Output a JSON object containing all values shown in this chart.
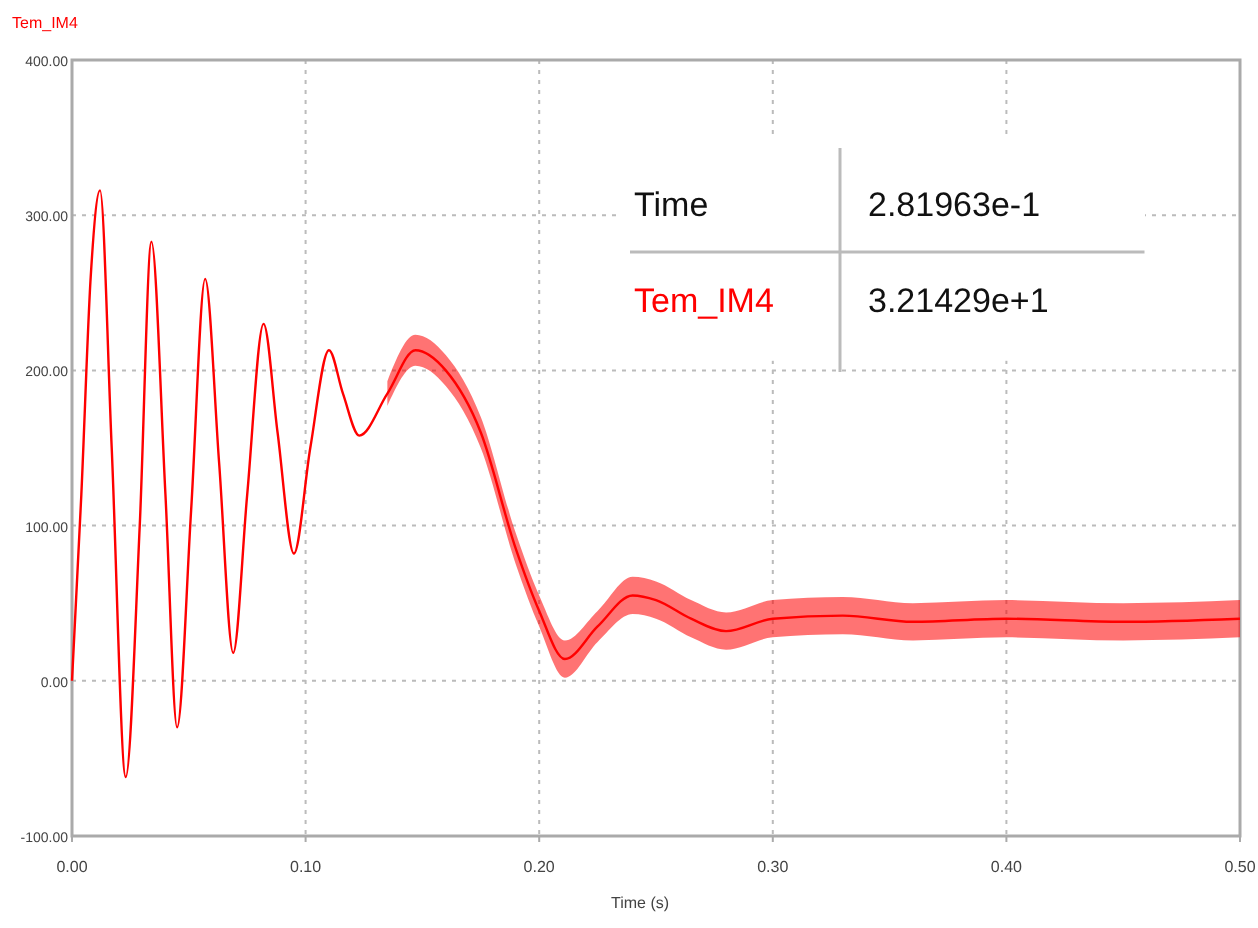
{
  "chart_data": {
    "type": "line",
    "xlabel": "Time (s)",
    "x": [
      0,
      0.004,
      0.008,
      0.012,
      0.017,
      0.023,
      0.029,
      0.034,
      0.04,
      0.045,
      0.051,
      0.057,
      0.063,
      0.069,
      0.075,
      0.082,
      0.088,
      0.095,
      0.102,
      0.11,
      0.116,
      0.123,
      0.135,
      0.147,
      0.16,
      0.175,
      0.19,
      0.2,
      0.211,
      0.225,
      0.24,
      0.25,
      0.265,
      0.28,
      0.3,
      0.33,
      0.36,
      0.4,
      0.45,
      0.5
    ],
    "series": [
      {
        "name": "Tem_IM4",
        "color": "#ff0000",
        "values": [
          0,
          120,
          260,
          316,
          150,
          -62,
          100,
          283,
          120,
          -30,
          110,
          259,
          140,
          18,
          120,
          230,
          160,
          82,
          150,
          213,
          185,
          158,
          185,
          213,
          200,
          160,
          85,
          45,
          14,
          35,
          55,
          52,
          40,
          32,
          40,
          42,
          38,
          40,
          38,
          40
        ],
        "lower": [
          null,
          null,
          null,
          null,
          null,
          null,
          null,
          null,
          null,
          null,
          null,
          null,
          null,
          null,
          null,
          null,
          null,
          null,
          null,
          null,
          null,
          null,
          177,
          203,
          190,
          150,
          75,
          35,
          2,
          25,
          43,
          40,
          28,
          20,
          28,
          30,
          26,
          28,
          26,
          28
        ],
        "upper": [
          null,
          null,
          null,
          null,
          null,
          null,
          null,
          null,
          null,
          null,
          null,
          null,
          null,
          null,
          null,
          null,
          null,
          null,
          null,
          null,
          null,
          null,
          193,
          223,
          210,
          170,
          95,
          55,
          26,
          45,
          67,
          64,
          52,
          44,
          52,
          54,
          50,
          52,
          50,
          52
        ]
      }
    ],
    "xlim": [
      0,
      0.5
    ],
    "xticks": [
      {
        "value": 0,
        "label": "0.00"
      },
      {
        "value": 0.1,
        "label": "0.10"
      },
      {
        "value": 0.2,
        "label": "0.20"
      },
      {
        "value": 0.3,
        "label": "0.30"
      },
      {
        "value": 0.4,
        "label": "0.40"
      },
      {
        "value": 0.5,
        "label": "0.50"
      }
    ],
    "ylim": [
      -100,
      400
    ],
    "yticks": [
      {
        "value": -100,
        "label": "-100.00"
      },
      {
        "value": 0,
        "label": "0.00"
      },
      {
        "value": 100,
        "label": "100.00"
      },
      {
        "value": 200,
        "label": "200.00"
      },
      {
        "value": 300,
        "label": "300.00"
      },
      {
        "value": 400,
        "label": "400.00"
      }
    ],
    "grid": true,
    "legend": "top left",
    "line_style": "solid",
    "marker": "none",
    "annotations": [
      "Time",
      "2.81963e-1",
      "Tem_IM4",
      "3.21429e+1"
    ]
  }
}
